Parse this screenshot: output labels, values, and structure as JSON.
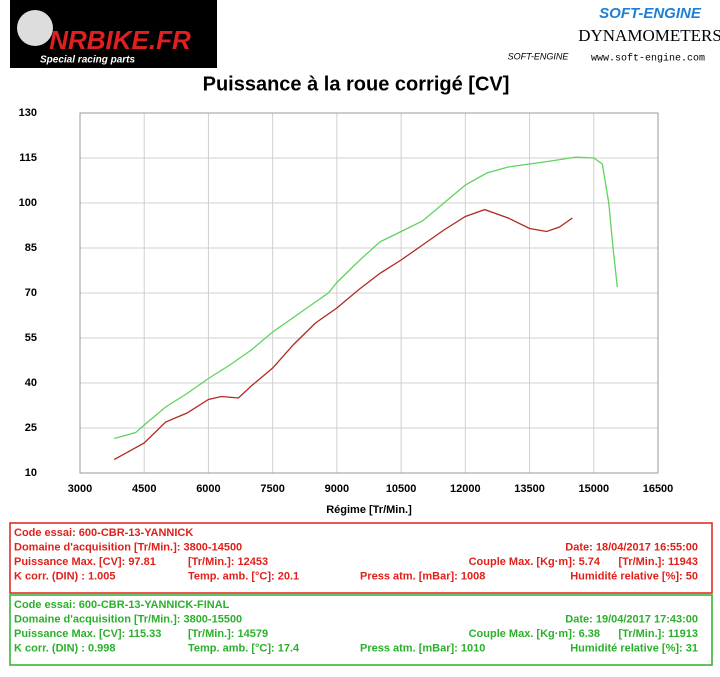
{
  "header": {
    "left_logo": "NRBIKE.FR",
    "left_tagline": "Special racing parts",
    "right_logo": "SOFT-ENGINE",
    "right_title": "DYNAMOMETERS",
    "right_small": "SOFT-ENGINE",
    "right_url": "www.soft-engine.com"
  },
  "chart_data": {
    "type": "line",
    "title": "Puissance à la roue corrigé [CV]",
    "x_label": "Régime [Tr/Min.]",
    "xlim": [
      3000,
      16500
    ],
    "xticks": [
      3000,
      4500,
      6000,
      7500,
      9000,
      10500,
      12000,
      13500,
      15000,
      16500
    ],
    "ylim": [
      10,
      130
    ],
    "yticks": [
      10,
      25,
      40,
      55,
      70,
      85,
      100,
      115,
      130
    ],
    "grid": true,
    "series": [
      {
        "color": "#b22a1e",
        "x": [
          3800,
          4500,
          5000,
          5500,
          6000,
          6300,
          6700,
          7000,
          7500,
          8000,
          8500,
          9000,
          9500,
          10000,
          10500,
          11000,
          11500,
          12000,
          12453,
          13000,
          13500,
          13900,
          14200,
          14500
        ],
        "values": [
          14.5,
          20,
          27,
          30,
          34.5,
          35.5,
          35,
          39,
          45,
          53,
          60,
          65,
          71,
          76.5,
          81,
          86,
          91,
          95.5,
          97.8,
          95,
          91.5,
          90.5,
          92,
          95
        ]
      },
      {
        "color": "#5fd35f",
        "x": [
          3800,
          4300,
          4500,
          5000,
          5500,
          6000,
          6500,
          7000,
          7500,
          8000,
          8500,
          8800,
          9000,
          9500,
          10000,
          10500,
          11000,
          11500,
          12000,
          12500,
          13000,
          13500,
          14000,
          14579,
          15000,
          15200,
          15350,
          15450,
          15550
        ],
        "values": [
          21.5,
          23.5,
          26,
          32,
          36.5,
          41.5,
          46,
          51,
          57,
          62,
          67,
          70,
          73.5,
          80.5,
          87,
          90.5,
          94,
          100,
          106,
          110,
          112,
          113,
          114,
          115.3,
          115,
          113,
          100,
          85,
          72
        ]
      }
    ]
  },
  "info_boxes": [
    {
      "color": "#e0201a",
      "rows": [
        [
          "Code essai: 600-CBR-13-YANNICK"
        ],
        [
          "Domaine d'acquisition [Tr/Min.]: 3800-14500",
          "Date: 18/04/2017   16:55:00"
        ],
        [
          "Puissance Max. [CV]: 97.81",
          "[Tr/Min.]: 12453",
          "Couple Max. [Kg·m]: 5.74",
          "[Tr/Min.]: 11943"
        ],
        [
          "K corr. (DIN) : 1.005",
          "Temp. amb. [°C]: 20.1",
          "Press atm. [mBar]: 1008",
          "Humidité relative [%]: 50"
        ]
      ]
    },
    {
      "color": "#2bb02b",
      "rows": [
        [
          "Code essai: 600-CBR-13-YANNICK-FINAL"
        ],
        [
          "Domaine d'acquisition [Tr/Min.]: 3800-15500",
          "Date: 19/04/2017   17:43:00"
        ],
        [
          "Puissance Max. [CV]: 115.33",
          "[Tr/Min.]: 14579",
          "Couple Max. [Kg·m]: 6.38",
          "[Tr/Min.]: 11913"
        ],
        [
          "K corr. (DIN) : 0.998",
          "Temp. amb. [°C]: 17.4",
          "Press atm. [mBar]: 1010",
          "Humidité relative [%]: 31"
        ]
      ]
    }
  ]
}
